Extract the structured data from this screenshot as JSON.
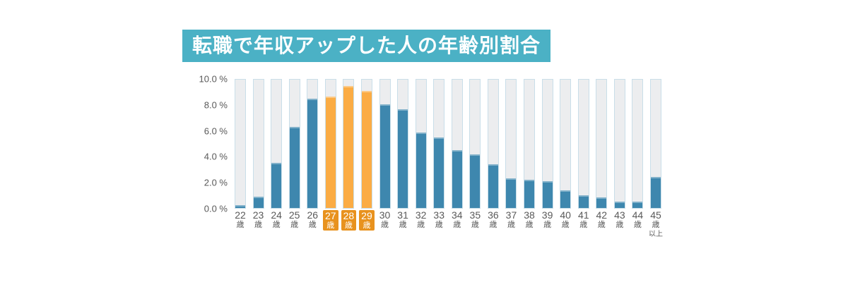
{
  "title": {
    "text": "転職で年収アップした人の年齢別割合"
  },
  "colors": {
    "background": "#FFFFFF",
    "title_bg": "#4BB1C5",
    "title_text": "#FFFFFF",
    "bar_fill": "#3E87AE",
    "bar_fill_highlight": "#FBAC44",
    "bar_track": "#ECEDEF",
    "bar_track_border": "#C9DEE9",
    "axis_text": "#595959",
    "x_label_highlight_bg": "#E8921E",
    "x_label_highlight_text": "#FFFFFF"
  },
  "chart_data": {
    "type": "bar",
    "title": "転職で年収アップした人の年齢別割合",
    "xlabel": "",
    "ylabel": "",
    "unit": "%",
    "ylim": [
      0,
      10
    ],
    "grid": false,
    "legend": false,
    "y_ticks": [
      "10.0 %",
      "8.0 %",
      "6.0 %",
      "4.0 %",
      "2.0 %",
      "0.0 %"
    ],
    "categories": [
      "22歳",
      "23歳",
      "24歳",
      "25歳",
      "26歳",
      "27歳",
      "28歳",
      "29歳",
      "30歳",
      "31歳",
      "32歳",
      "33歳",
      "34歳",
      "35歳",
      "36歳",
      "37歳",
      "38歳",
      "39歳",
      "40歳",
      "41歳",
      "42歳",
      "43歳",
      "44歳",
      "45歳以上"
    ],
    "values": [
      0.2,
      0.9,
      3.5,
      6.3,
      8.5,
      8.7,
      9.5,
      9.1,
      8.1,
      7.7,
      5.9,
      5.5,
      4.5,
      4.2,
      3.4,
      2.3,
      2.2,
      2.1,
      1.4,
      1.0,
      0.8,
      0.5,
      0.5,
      2.4
    ],
    "highlighted_categories": [
      "27歳",
      "28歳",
      "29歳"
    ],
    "highlight_indices": [
      5,
      6,
      7
    ],
    "x_labels": [
      {
        "top": "22",
        "bottom": "歳"
      },
      {
        "top": "23",
        "bottom": "歳"
      },
      {
        "top": "24",
        "bottom": "歳"
      },
      {
        "top": "25",
        "bottom": "歳"
      },
      {
        "top": "26",
        "bottom": "歳"
      },
      {
        "top": "27",
        "bottom": "歳"
      },
      {
        "top": "28",
        "bottom": "歳"
      },
      {
        "top": "29",
        "bottom": "歳"
      },
      {
        "top": "30",
        "bottom": "歳"
      },
      {
        "top": "31",
        "bottom": "歳"
      },
      {
        "top": "32",
        "bottom": "歳"
      },
      {
        "top": "33",
        "bottom": "歳"
      },
      {
        "top": "34",
        "bottom": "歳"
      },
      {
        "top": "35",
        "bottom": "歳"
      },
      {
        "top": "36",
        "bottom": "歳"
      },
      {
        "top": "37",
        "bottom": "歳"
      },
      {
        "top": "38",
        "bottom": "歳"
      },
      {
        "top": "39",
        "bottom": "歳"
      },
      {
        "top": "40",
        "bottom": "歳"
      },
      {
        "top": "41",
        "bottom": "歳"
      },
      {
        "top": "42",
        "bottom": "歳"
      },
      {
        "top": "43",
        "bottom": "歳"
      },
      {
        "top": "44",
        "bottom": "歳"
      },
      {
        "top": "45",
        "bottom": "歳",
        "extra": "以上"
      }
    ]
  }
}
